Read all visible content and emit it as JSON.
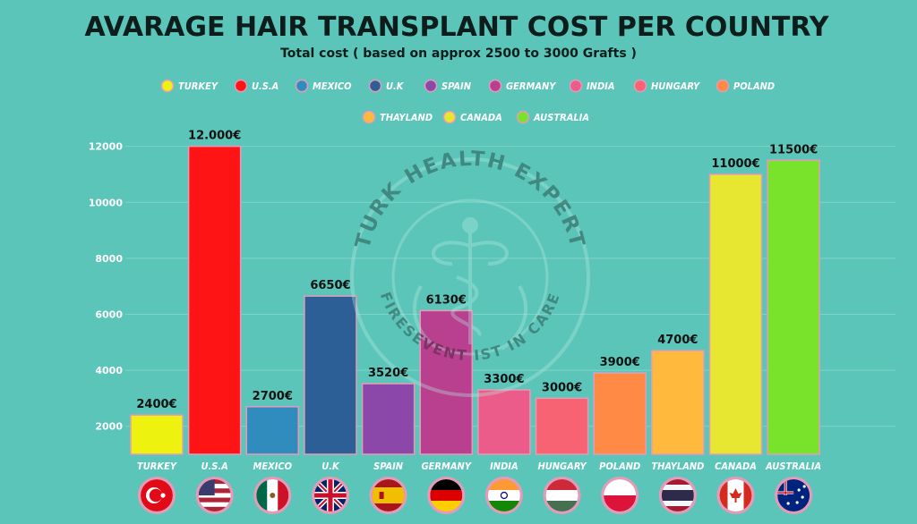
{
  "chart_data": {
    "type": "bar",
    "title": "AVARAGE HAIR TRANSPLANT COST PER COUNTRY",
    "subtitle": "Total cost ( based on approx 2500 to 3000 Grafts )",
    "categories": [
      "TURKEY",
      "U.S.A",
      "MEXICO",
      "U.K",
      "SPAIN",
      "GERMANY",
      "INDIA",
      "HUNGARY",
      "POLAND",
      "THAYLAND",
      "CANADA",
      "AUSTRALIA"
    ],
    "values": [
      2400,
      12000,
      2700,
      6650,
      3520,
      6130,
      3300,
      3000,
      3900,
      4700,
      11000,
      11500
    ],
    "data_labels": [
      "2400€",
      "12.000€",
      "2700€",
      "6650€",
      "3520€",
      "6130€",
      "3300€",
      "3000€",
      "3900€",
      "4700€",
      "11000€",
      "11500€"
    ],
    "colors": [
      "#eef20f",
      "#fe1414",
      "#2f8cbc",
      "#2c5f96",
      "#8b48a8",
      "#b8408f",
      "#ec5c8a",
      "#f76372",
      "#ff8a45",
      "#ffb93c",
      "#e7e630",
      "#79e32b"
    ],
    "yticks": [
      2000,
      4000,
      6000,
      8000,
      10000,
      12000
    ],
    "ylim": [
      1000,
      12500
    ],
    "xlabel": "",
    "ylabel": "",
    "legend_position": "top-center",
    "watermark": {
      "top_text": "TURK HEALTH EXPERT",
      "bottom_text": "FIRESEVENT IST IN CARE"
    }
  }
}
